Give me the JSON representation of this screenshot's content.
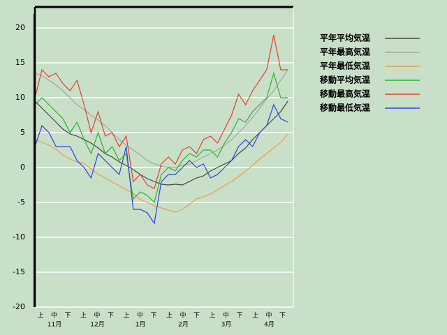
{
  "chart_data": {
    "type": "line",
    "x_tick_labels": [
      "上",
      "中",
      "下",
      "上",
      "中",
      "下",
      "上",
      "中",
      "下",
      "上",
      "中",
      "下",
      "上",
      "中",
      "下",
      "上",
      "中",
      "下"
    ],
    "x_group_labels": [
      "11月",
      "12月",
      "1月",
      "2月",
      "3月",
      "4月"
    ],
    "ylim": [
      -20,
      23
    ],
    "yticks": [
      -20,
      -15,
      -10,
      -5,
      0,
      5,
      10,
      15,
      20
    ],
    "grid": true,
    "legend": "right",
    "series": [
      {
        "name": "平年平均気温",
        "color": "#404840",
        "values": [
          9.5,
          8.5,
          7.5,
          6.5,
          5.5,
          4.8,
          4.5,
          4,
          3.5,
          2.8,
          2,
          1.5,
          0.8,
          0.3,
          -0.3,
          -1,
          -1.6,
          -2,
          -2.4,
          -2.5,
          -2.4,
          -2.5,
          -2,
          -1.5,
          -1.2,
          -0.5,
          0,
          0.5,
          1,
          2,
          2.8,
          4,
          5,
          6,
          7,
          8,
          9.5
        ]
      },
      {
        "name": "平年最高気温",
        "color": "#a0a8a0",
        "values": [
          13.5,
          13.2,
          12.5,
          11.8,
          11,
          10,
          9,
          8.3,
          7.5,
          6.8,
          6,
          5,
          4,
          3.2,
          2.5,
          1.8,
          1,
          0.5,
          0.2,
          0,
          0,
          0.3,
          0.5,
          1,
          1.5,
          2,
          2.5,
          3.2,
          4,
          5,
          6,
          7.2,
          8.5,
          9.8,
          11,
          12.5,
          14
        ]
      },
      {
        "name": "平年最低気温",
        "color": "#e8a048",
        "values": [
          4,
          3.6,
          3.2,
          2.6,
          1.8,
          1.2,
          0.8,
          0.6,
          -0.2,
          -1,
          -1.5,
          -2.1,
          -2.6,
          -3.2,
          -3.7,
          -4.6,
          -5,
          -5.5,
          -5.8,
          -6.1,
          -6.4,
          -6,
          -5.3,
          -4.5,
          -4.2,
          -3.8,
          -3.2,
          -2.6,
          -2,
          -1.3,
          -0.5,
          0.3,
          1.2,
          2,
          2.8,
          3.6,
          4.8
        ]
      },
      {
        "name": "移動平均気温",
        "color": "#30b030",
        "values": [
          9,
          10,
          9,
          8,
          7,
          5,
          6.5,
          4,
          2,
          5,
          2,
          3,
          1,
          2,
          -4.5,
          -3.5,
          -4,
          -5,
          -1,
          0,
          -0.5,
          1,
          2,
          1.5,
          2.5,
          2.5,
          1.5,
          3.5,
          5,
          7,
          6.5,
          8,
          9,
          10,
          13.5,
          10,
          10
        ]
      },
      {
        "name": "移動最高気温",
        "color": "#e84030",
        "values": [
          10,
          14,
          13,
          13.5,
          12,
          11,
          12.5,
          9,
          5,
          8,
          4.5,
          5,
          3,
          4.5,
          -2,
          -1,
          -2.5,
          -3,
          0.5,
          1.5,
          0.5,
          2.5,
          3,
          2,
          4,
          4.5,
          3.5,
          5.5,
          7.5,
          10.5,
          9,
          11,
          12.5,
          14,
          19,
          14,
          14
        ]
      },
      {
        "name": "移動最低気温",
        "color": "#3040e0",
        "values": [
          3,
          6,
          5,
          3,
          3,
          3,
          1,
          0,
          -1.5,
          2,
          1,
          0,
          -1,
          3,
          -6,
          -6,
          -6.5,
          -8,
          -2,
          -1,
          -1,
          0,
          1,
          0,
          0.5,
          -1.5,
          -1,
          0,
          1,
          3,
          4,
          3,
          5,
          6,
          9,
          7,
          6.5
        ]
      }
    ]
  }
}
